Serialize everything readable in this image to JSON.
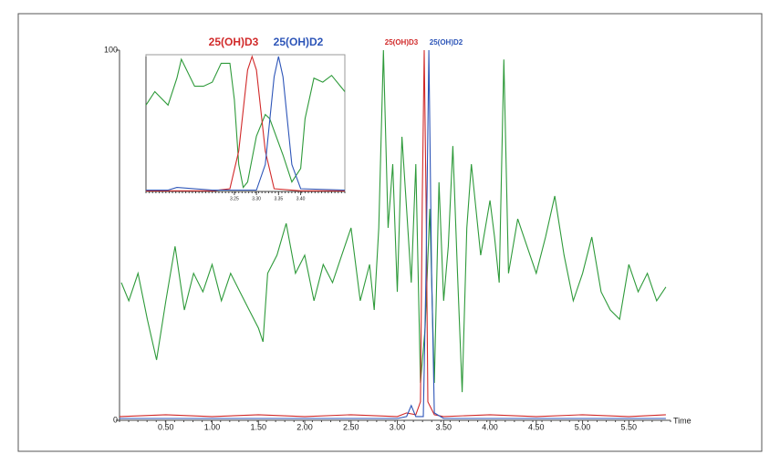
{
  "chart_data": [
    {
      "type": "line",
      "x_label": "Time",
      "xlim": [
        0,
        5.95
      ],
      "ylim": [
        0,
        100
      ],
      "xticks": [
        {
          "value": 0.5,
          "label": "0.50"
        },
        {
          "value": 1,
          "label": "1.00"
        },
        {
          "value": 1.5,
          "label": "1.50"
        },
        {
          "value": 2,
          "label": "2.00"
        },
        {
          "value": 2.5,
          "label": "2.50"
        },
        {
          "value": 3,
          "label": "3.00"
        },
        {
          "value": 3.5,
          "label": "3.50"
        },
        {
          "value": 4,
          "label": "4.00"
        },
        {
          "value": 4.5,
          "label": "4.50"
        },
        {
          "value": 5,
          "label": "5.00"
        },
        {
          "value": 5.5,
          "label": "5.50"
        }
      ],
      "yticks": [
        0,
        100
      ],
      "series": [
        {
          "color": "#2e9a3a",
          "x": [
            0.02,
            0.1,
            0.2,
            0.3,
            0.4,
            0.5,
            0.6,
            0.7,
            0.8,
            0.9,
            1.0,
            1.1,
            1.2,
            1.3,
            1.4,
            1.5,
            1.55,
            1.6,
            1.7,
            1.8,
            1.9,
            2.0,
            2.1,
            2.2,
            2.3,
            2.4,
            2.5,
            2.6,
            2.7,
            2.75,
            2.8,
            2.85,
            2.9,
            2.95,
            3.0,
            3.05,
            3.1,
            3.15,
            3.2,
            3.25,
            3.3,
            3.35,
            3.4,
            3.45,
            3.5,
            3.55,
            3.6,
            3.65,
            3.7,
            3.75,
            3.8,
            3.9,
            4.0,
            4.05,
            4.1,
            4.15,
            4.2,
            4.3,
            4.4,
            4.5,
            4.6,
            4.7,
            4.8,
            4.9,
            5.0,
            5.1,
            5.2,
            5.3,
            5.4,
            5.5,
            5.6,
            5.7,
            5.8,
            5.9
          ],
          "values": [
            37.2,
            32.3,
            39.7,
            27.3,
            16.3,
            32.3,
            47.0,
            29.8,
            39.7,
            34.7,
            42.1,
            32.3,
            39.7,
            34.7,
            29.8,
            24.9,
            21.2,
            39.7,
            44.6,
            53.2,
            39.7,
            44.6,
            32.3,
            42.1,
            37.2,
            44.6,
            52.0,
            32.3,
            42.1,
            29.8,
            52.0,
            100,
            52.0,
            69.2,
            34.7,
            76.6,
            57.1,
            37.2,
            69.2,
            10.1,
            24.9,
            57.1,
            10.1,
            64.3,
            32.3,
            47.0,
            74.1,
            39.7,
            7.6,
            52.0,
            69.2,
            44.6,
            59.4,
            49.5,
            37.2,
            97.5,
            39.7,
            54.4,
            47.0,
            39.7,
            49.5,
            60.6,
            44.6,
            32.3,
            39.7,
            49.5,
            34.7,
            29.8,
            27.3,
            42.1,
            34.7,
            39.7,
            32.3,
            36.0
          ]
        },
        {
          "name": "25(OH)D3",
          "color": "#d12a2a",
          "x": [
            0,
            0.5,
            1,
            1.5,
            2,
            2.5,
            3,
            3.1,
            3.2,
            3.25,
            3.27,
            3.29,
            3.31,
            3.33,
            3.4,
            3.5,
            4,
            4.5,
            5,
            5.5,
            5.9
          ],
          "values": [
            1,
            1.5,
            1,
            1.5,
            1,
            1.5,
            1,
            2,
            1.5,
            5,
            60,
            100,
            60,
            5,
            1.5,
            1,
            1.5,
            1,
            1.5,
            1,
            1.5
          ]
        },
        {
          "name": "25(OH)D2",
          "color": "#2d55b8",
          "x": [
            0,
            0.5,
            1,
            1.5,
            2,
            2.5,
            3,
            3.1,
            3.15,
            3.2,
            3.28,
            3.31,
            3.34,
            3.37,
            3.4,
            3.5,
            4,
            4.5,
            5,
            5.5,
            5.9
          ],
          "values": [
            0.5,
            0.5,
            0.5,
            0.5,
            0.5,
            0.5,
            0.5,
            1,
            4,
            1,
            1,
            40,
            100,
            40,
            2,
            0.5,
            0.5,
            0.5,
            0.5,
            0.5,
            0.5
          ]
        }
      ]
    },
    {
      "type": "line",
      "xlim": [
        3.05,
        3.5
      ],
      "ylim": [
        0,
        100
      ],
      "xticks": [
        {
          "value": 3.25,
          "label": "3.25"
        },
        {
          "value": 3.3,
          "label": "3.30"
        },
        {
          "value": 3.35,
          "label": "3.35"
        },
        {
          "value": 3.4,
          "label": "3.40"
        }
      ],
      "series": [
        {
          "color": "#2e9a3a",
          "x": [
            3.05,
            3.07,
            3.1,
            3.12,
            3.13,
            3.16,
            3.18,
            3.2,
            3.22,
            3.24,
            3.25,
            3.26,
            3.27,
            3.28,
            3.3,
            3.32,
            3.33,
            3.36,
            3.38,
            3.4,
            3.41,
            3.43,
            3.45,
            3.47,
            3.49,
            3.5
          ],
          "values": [
            64,
            74,
            64,
            84,
            98,
            78,
            78,
            81,
            95,
            95,
            68,
            20,
            3,
            7,
            41,
            57,
            54,
            27,
            7,
            17,
            54,
            84,
            81,
            86,
            78,
            74
          ]
        },
        {
          "name": "25(OH)D3",
          "color": "#d12a2a",
          "x": [
            3.05,
            3.2,
            3.24,
            3.26,
            3.28,
            3.29,
            3.3,
            3.32,
            3.34,
            3.4,
            3.5
          ],
          "values": [
            0.5,
            0.5,
            2,
            30,
            90,
            100,
            90,
            30,
            2,
            0.5,
            0.5
          ]
        },
        {
          "name": "25(OH)D2",
          "color": "#2d55b8",
          "x": [
            3.05,
            3.1,
            3.12,
            3.2,
            3.3,
            3.32,
            3.34,
            3.35,
            3.36,
            3.38,
            3.4,
            3.5
          ],
          "values": [
            1,
            1,
            3,
            1,
            1,
            20,
            85,
            100,
            85,
            20,
            2,
            1
          ]
        }
      ]
    }
  ]
}
